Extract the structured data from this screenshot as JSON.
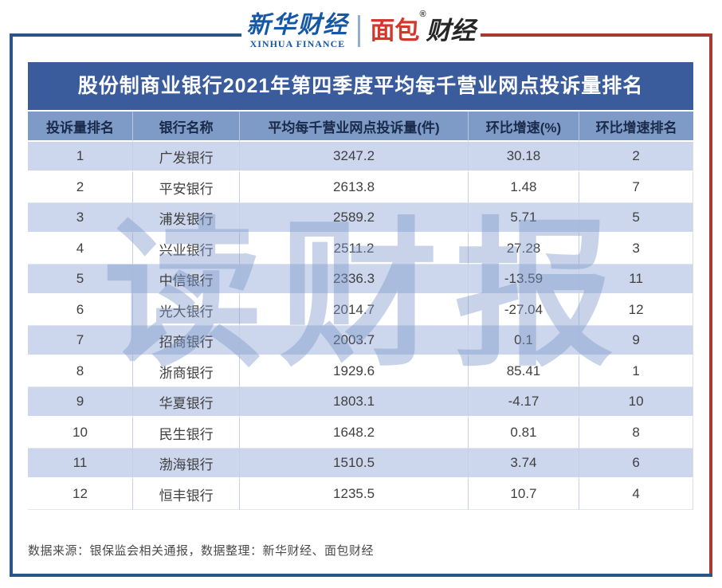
{
  "logos": {
    "xinhua_cn": "新华财经",
    "xinhua_en": "XINHUA FINANCE",
    "mianbao_part1": "面包",
    "mianbao_reg": "®",
    "mianbao_part2": "财经"
  },
  "table": {
    "title": "股份制商业银行2021年第四季度平均每千营业网点投诉量排名",
    "columns": [
      "投诉量排名",
      "银行名称",
      "平均每千营业网点投诉量(件)",
      "环比增速(%)",
      "环比增速排名"
    ],
    "rows": [
      [
        "1",
        "广发银行",
        "3247.2",
        "30.18",
        "2"
      ],
      [
        "2",
        "平安银行",
        "2613.8",
        "1.48",
        "7"
      ],
      [
        "3",
        "浦发银行",
        "2589.2",
        "5.71",
        "5"
      ],
      [
        "4",
        "兴业银行",
        "2511.2",
        "27.28",
        "3"
      ],
      [
        "5",
        "中信银行",
        "2336.3",
        "-13.59",
        "11"
      ],
      [
        "6",
        "光大银行",
        "2014.7",
        "-27.04",
        "12"
      ],
      [
        "7",
        "招商银行",
        "2003.7",
        "0.1",
        "9"
      ],
      [
        "8",
        "浙商银行",
        "1929.6",
        "85.41",
        "1"
      ],
      [
        "9",
        "华夏银行",
        "1803.1",
        "-4.17",
        "10"
      ],
      [
        "10",
        "民生银行",
        "1648.2",
        "0.81",
        "8"
      ],
      [
        "11",
        "渤海银行",
        "1510.5",
        "3.74",
        "6"
      ],
      [
        "12",
        "恒丰银行",
        "1235.5",
        "10.7",
        "4"
      ]
    ],
    "column_widths_pct": [
      15.8,
      16.1,
      34.3,
      16.7,
      17.1
    ]
  },
  "watermark": "读财报",
  "footer": {
    "text": "数据来源：银保监会相关通报，数据整理：新华财经、面包财经"
  },
  "colors": {
    "title_bar": "#3A5C9C",
    "header_row": "#7E9BC7",
    "row_alternate": "#CCD6EC",
    "frame_blue": "#2A5586",
    "frame_red": "#A63A31",
    "logo_blue": "#1558A6",
    "logo_red": "#D2382C"
  }
}
